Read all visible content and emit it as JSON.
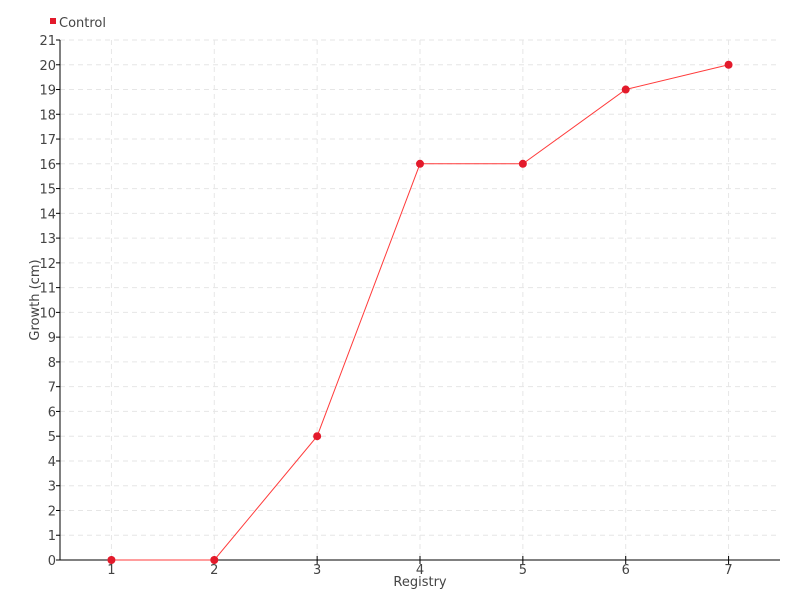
{
  "chart_data": {
    "type": "line",
    "title": "",
    "xlabel": "Registry",
    "ylabel": "Growth (cm)",
    "x": [
      1,
      2,
      3,
      4,
      5,
      6,
      7
    ],
    "series": [
      {
        "name": "Control",
        "values": [
          0,
          0,
          5,
          16,
          16,
          19,
          20
        ],
        "color": "#e31a2b"
      }
    ],
    "xlim": [
      0.5,
      7.5
    ],
    "ylim": [
      0,
      21
    ],
    "grid": true,
    "legend": "top-left"
  }
}
